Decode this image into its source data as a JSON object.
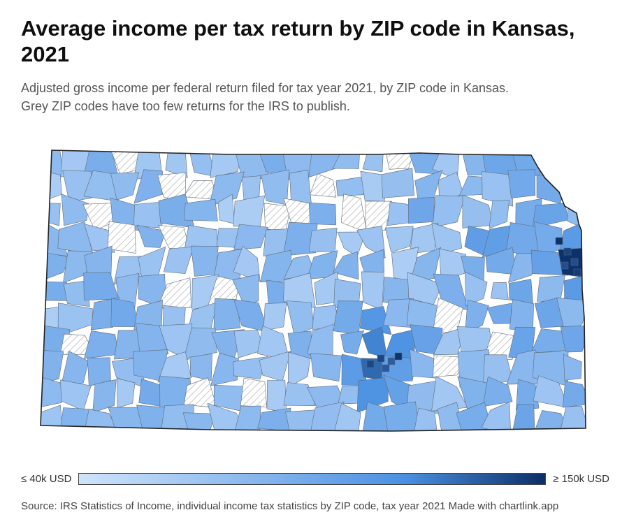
{
  "title": "Average income per tax return by ZIP code in Kansas, 2021",
  "subtitle_line1": "Adjusted gross income per federal return filed for tax year 2021, by ZIP code in Kansas.",
  "subtitle_line2": "Grey ZIP codes have too few returns for the IRS to publish.",
  "legend": {
    "min_label": "≤ 40k USD",
    "max_label": "≥ 150k USD",
    "color_low": "#cfe3fb",
    "color_mid": "#4a90e2",
    "color_high": "#0b2f66"
  },
  "source": "Source: IRS Statistics of Income, individual income tax statistics by ZIP code, tax year 2021 Made with chartlink.app",
  "map_colors": {
    "no_data_fill": "#ffffff",
    "no_data_hatch": "#bbbbbb",
    "boundary": "#5f6b7a",
    "outline": "#222222"
  }
}
